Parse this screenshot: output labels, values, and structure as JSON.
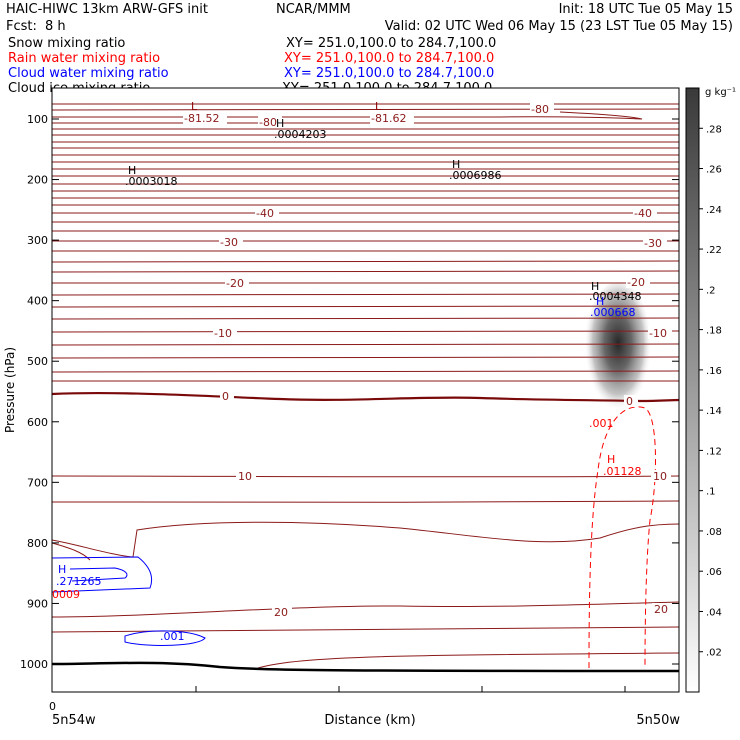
{
  "header": {
    "model": "HAIC-HIWC 13km ARW-GFS init",
    "center": "NCAR/MMM",
    "init": "Init: 18 UTC Tue 05 May 15",
    "fcst_label": "Fcst:",
    "fcst_value": "8 h",
    "valid": "Valid: 02 UTC Wed 06 May 15 (23 LST Tue 05 May 15)"
  },
  "fields": [
    {
      "label": "Snow mixing ratio",
      "xy": "XY= 251.0,100.0 to 284.7,100.0",
      "color": "#000000"
    },
    {
      "label": "Rain water mixing ratio",
      "xy": "XY= 251.0,100.0 to 284.7,100.0",
      "color": "#ff0000"
    },
    {
      "label": "Cloud water mixing ratio",
      "xy": "XY= 251.0,100.0 to 284.7,100.0",
      "color": "#0000ff"
    },
    {
      "label": "Cloud ice mixing ratio",
      "xy": "XY= 251.0,100.0 to 284.7,100.0",
      "color": "#000000"
    }
  ],
  "chart_data": {
    "type": "contour-cross-section",
    "ylabel": "Pressure (hPa)",
    "xlabel": "Distance (km)",
    "x_start_tick": "0",
    "left_location": "5n54w",
    "right_location": "5n50w",
    "y_ticks": [
      100,
      200,
      300,
      400,
      500,
      600,
      700,
      800,
      900,
      1000
    ],
    "ylim": [
      1050,
      40
    ],
    "colorbar": {
      "units": "g kg⁻¹",
      "ticks": [
        ".02",
        ".04",
        ".06",
        ".08",
        ".1",
        ".12",
        ".14",
        ".16",
        ".18",
        ".2",
        ".22",
        ".24",
        ".26",
        ".28"
      ],
      "range": [
        0,
        0.3
      ]
    },
    "temperature_labels": [
      "-81.52",
      "-80",
      "-81.62",
      "-80",
      "-40",
      "-40",
      "-30",
      "-30",
      "-20",
      "-20",
      "-10",
      "-10",
      "0",
      "0",
      "10",
      "10",
      "20",
      "20"
    ],
    "extrema": [
      {
        "kind": "L",
        "value": "-81.52",
        "color": "#8b0000"
      },
      {
        "kind": "L",
        "value": "-81.62",
        "color": "#8b0000"
      },
      {
        "kind": "H",
        "value": ".0004203",
        "color": "#000000"
      },
      {
        "kind": "H",
        "value": ".0003018",
        "color": "#000000"
      },
      {
        "kind": "H",
        "value": ".0006986",
        "color": "#000000"
      },
      {
        "kind": "H",
        "value": ".0004348",
        "color": "#000000"
      },
      {
        "kind": "H",
        "value": ".000668",
        "color": "#0000ff"
      },
      {
        "kind": "H",
        "value": ".01128",
        "color": "#ff0000"
      },
      {
        "kind": "H",
        "value": ".271265",
        "color": "#0000ff"
      }
    ],
    "rain_contour_label": ".001",
    "rain_low_label": "0009",
    "cloud_contour_label": ".001",
    "colors": {
      "temperature": "#8b1a1a",
      "zero_isotherm": "#7a0a0a",
      "rain": "#ff0000",
      "cloud_water": "#0000ff",
      "terrain": "#000000"
    }
  }
}
